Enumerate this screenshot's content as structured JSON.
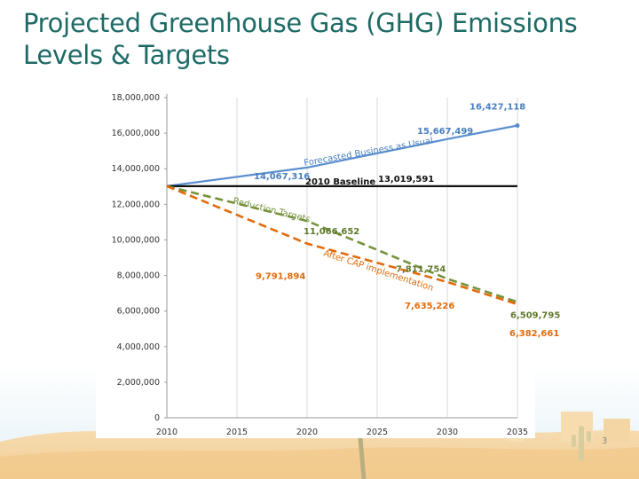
{
  "slide": {
    "title_line1": "Projected Greenhouse Gas (GHG) Emissions",
    "title_line2": "Levels & Targets",
    "page_number": "3"
  },
  "chart_data": {
    "type": "line",
    "title": "",
    "xlabel": "",
    "ylabel": "",
    "x": [
      2010,
      2015,
      2020,
      2025,
      2030,
      2035
    ],
    "xlim": [
      2010,
      2035
    ],
    "ylim": [
      0,
      18000000
    ],
    "yticks": [
      0,
      2000000,
      4000000,
      6000000,
      8000000,
      10000000,
      12000000,
      14000000,
      16000000,
      18000000
    ],
    "ytick_labels": [
      "0",
      "2,000,000",
      "4,000,000",
      "6,000,000",
      "8,000,000",
      "10,000,000",
      "12,000,000",
      "14,000,000",
      "16,000,000",
      "18,000,000"
    ],
    "xtick_labels": [
      "2010",
      "2015",
      "2020",
      "2025",
      "2030",
      "2035"
    ],
    "grid": "vertical",
    "series": [
      {
        "key": "bau",
        "annotation": "Forecasted Business as Usual",
        "color": "#5b8fd0",
        "style": "solid",
        "points": [
          [
            2010,
            13019591
          ],
          [
            2020,
            14067316
          ],
          [
            2030,
            15667499
          ],
          [
            2035,
            16427118
          ]
        ],
        "labels": [
          {
            "x": 2020,
            "y": 14067316,
            "text": "14,067,316"
          },
          {
            "x": 2030,
            "y": 15667499,
            "text": "15,667,499"
          },
          {
            "x": 2035,
            "y": 16427118,
            "text": "16,427,118"
          }
        ]
      },
      {
        "key": "baseline",
        "annotation": "2010 Baseline",
        "color": "#111111",
        "style": "solid",
        "points": [
          [
            2010,
            13019591
          ],
          [
            2035,
            13019591
          ]
        ],
        "labels": [
          {
            "x": 2010,
            "y": 13019591,
            "text": "13,019,591"
          }
        ]
      },
      {
        "key": "reduction",
        "annotation": "Reduction Targets",
        "color": "#76923c",
        "style": "dashed",
        "points": [
          [
            2010,
            13019591
          ],
          [
            2020,
            11066652
          ],
          [
            2030,
            7811754
          ],
          [
            2035,
            6509795
          ]
        ],
        "labels": [
          {
            "x": 2020,
            "y": 11066652,
            "text": "11,066,652"
          },
          {
            "x": 2030,
            "y": 7811754,
            "text": "7,811,754"
          },
          {
            "x": 2035,
            "y": 6509795,
            "text": "6,509,795"
          }
        ]
      },
      {
        "key": "cap",
        "annotation": "After CAP implementation",
        "color": "#e26b0a",
        "style": "dashed",
        "points": [
          [
            2010,
            13019591
          ],
          [
            2020,
            9791894
          ],
          [
            2030,
            7635226
          ],
          [
            2035,
            6382661
          ]
        ],
        "labels": [
          {
            "x": 2020,
            "y": 9791894,
            "text": "9,791,894"
          },
          {
            "x": 2030,
            "y": 7635226,
            "text": "7,635,226"
          },
          {
            "x": 2035,
            "y": 6382661,
            "text": "6,382,661"
          }
        ]
      }
    ]
  }
}
